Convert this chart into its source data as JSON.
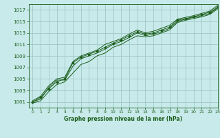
{
  "xlabel": "Graphe pression niveau de la mer (hPa)",
  "x_values": [
    0,
    1,
    2,
    3,
    4,
    5,
    6,
    7,
    8,
    9,
    10,
    11,
    12,
    13,
    14,
    15,
    16,
    17,
    18,
    19,
    20,
    21,
    22,
    23
  ],
  "line_marked": [
    1001.0,
    1001.8,
    1003.3,
    1004.5,
    1005.0,
    1007.8,
    1008.8,
    1009.3,
    1009.8,
    1010.5,
    1011.2,
    1011.8,
    1012.5,
    1013.2,
    1012.8,
    1013.0,
    1013.5,
    1014.0,
    1015.2,
    1015.5,
    1015.8,
    1016.2,
    1016.6,
    1017.5
  ],
  "line2": [
    1001.2,
    1002.0,
    1003.8,
    1005.0,
    1005.3,
    1008.0,
    1009.0,
    1009.5,
    1010.0,
    1011.0,
    1011.5,
    1012.0,
    1012.8,
    1013.5,
    1013.0,
    1013.3,
    1013.8,
    1014.3,
    1015.4,
    1015.7,
    1016.0,
    1016.4,
    1016.8,
    1017.8
  ],
  "line3": [
    1000.8,
    1001.2,
    1002.8,
    1004.0,
    1004.5,
    1006.0,
    1007.5,
    1008.0,
    1009.0,
    1009.5,
    1010.5,
    1011.0,
    1011.8,
    1012.5,
    1012.3,
    1012.5,
    1013.0,
    1013.5,
    1014.8,
    1015.2,
    1015.5,
    1015.8,
    1016.2,
    1017.2
  ],
  "line4": [
    1001.0,
    1001.5,
    1003.5,
    1004.8,
    1004.8,
    1007.2,
    1008.5,
    1009.0,
    1009.5,
    1010.2,
    1011.0,
    1011.5,
    1012.2,
    1013.0,
    1012.5,
    1012.8,
    1013.2,
    1013.8,
    1015.0,
    1015.4,
    1015.7,
    1016.0,
    1016.4,
    1017.4
  ],
  "bg_color": "#c8eaea",
  "grid_color": "#a0c8c8",
  "line_color": "#1a5c1a",
  "ylim": [
    1000,
    1018
  ],
  "yticks": [
    1001,
    1003,
    1005,
    1007,
    1009,
    1011,
    1013,
    1015,
    1017
  ],
  "xlim": [
    -0.5,
    23
  ],
  "xticks": [
    0,
    1,
    2,
    3,
    4,
    5,
    6,
    7,
    8,
    9,
    10,
    11,
    12,
    13,
    14,
    15,
    16,
    17,
    18,
    19,
    20,
    21,
    22,
    23
  ]
}
